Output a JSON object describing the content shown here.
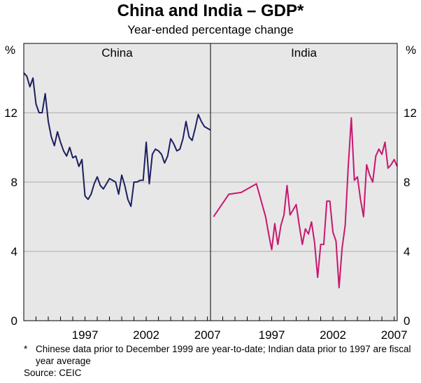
{
  "title": "China and India – GDP*",
  "subtitle": "Year-ended percentage change",
  "footnote": {
    "marker": "*",
    "text": "Chinese data prior to December 1999 are year-to-date; Indian data prior to 1997 are fiscal year average",
    "source": "Source: CEIC"
  },
  "colors": {
    "china": "#1b1f5e",
    "india": "#c8176f",
    "panel_bg": "#e7e7e7",
    "grid": "#a9a9a9"
  },
  "chart_data": [
    {
      "type": "line",
      "panel_title": "China",
      "unit_label": "%",
      "xlim": [
        1992.0,
        2007.25
      ],
      "ylim": [
        0,
        16
      ],
      "y_ticks": [
        0,
        4,
        8,
        12
      ],
      "x_ticks": [
        1997,
        2002,
        2007
      ],
      "x_tick_labels": [
        "1997",
        "2002",
        "2007"
      ],
      "series": [
        {
          "name": "China",
          "x": [
            1992.0,
            1992.25,
            1992.5,
            1992.75,
            1993.0,
            1993.25,
            1993.5,
            1993.75,
            1994.0,
            1994.25,
            1994.5,
            1994.75,
            1995.0,
            1995.25,
            1995.5,
            1995.75,
            1996.0,
            1996.25,
            1996.5,
            1996.75,
            1997.0,
            1997.25,
            1997.5,
            1997.75,
            1998.0,
            1998.25,
            1998.5,
            1998.75,
            1999.0,
            1999.25,
            1999.5,
            1999.75,
            2000.0,
            2000.25,
            2000.5,
            2000.75,
            2001.0,
            2001.25,
            2001.5,
            2001.75,
            2002.0,
            2002.25,
            2002.5,
            2002.75,
            2003.0,
            2003.25,
            2003.5,
            2003.75,
            2004.0,
            2004.25,
            2004.5,
            2004.75,
            2005.0,
            2005.25,
            2005.5,
            2005.75,
            2006.0,
            2006.25,
            2006.5,
            2006.75,
            2007.0,
            2007.25
          ],
          "values": [
            14.3,
            14.1,
            13.5,
            14.0,
            12.5,
            12.0,
            12.0,
            13.1,
            11.5,
            10.6,
            10.1,
            10.9,
            10.3,
            9.8,
            9.5,
            10.0,
            9.4,
            9.5,
            8.9,
            9.3,
            7.2,
            7.0,
            7.3,
            7.9,
            8.3,
            7.8,
            7.6,
            7.9,
            8.2,
            8.1,
            8.0,
            7.3,
            8.4,
            7.8,
            7.0,
            6.6,
            8.0,
            8.0,
            8.1,
            8.1,
            10.3,
            7.9,
            9.6,
            9.9,
            9.8,
            9.6,
            9.1,
            9.5,
            10.5,
            10.2,
            9.8,
            9.9,
            10.5,
            11.5,
            10.6,
            10.4,
            11.1,
            11.9,
            11.5,
            11.2,
            11.1,
            11.0
          ]
        }
      ]
    },
    {
      "type": "line",
      "panel_title": "India",
      "unit_label": "%",
      "xlim": [
        1992.0,
        2007.25
      ],
      "ylim": [
        0,
        16
      ],
      "y_ticks": [
        0,
        4,
        8,
        12
      ],
      "x_ticks": [
        1997,
        2002,
        2007
      ],
      "x_tick_labels": [
        "1997",
        "2002",
        "2007"
      ],
      "series": [
        {
          "name": "India",
          "x": [
            1992.25,
            1993.5,
            1994.5,
            1995.75,
            1996.5,
            1996.75,
            1997.0,
            1997.25,
            1997.5,
            1997.75,
            1998.0,
            1998.25,
            1998.5,
            1998.75,
            1999.0,
            1999.25,
            1999.5,
            1999.75,
            2000.0,
            2000.25,
            2000.5,
            2000.75,
            2001.0,
            2001.25,
            2001.5,
            2001.75,
            2002.0,
            2002.25,
            2002.5,
            2002.75,
            2003.0,
            2003.25,
            2003.5,
            2003.75,
            2004.0,
            2004.25,
            2004.5,
            2004.75,
            2005.0,
            2005.25,
            2005.5,
            2005.75,
            2006.0,
            2006.25,
            2006.5,
            2006.75,
            2007.0,
            2007.25
          ],
          "values": [
            6.0,
            7.3,
            7.4,
            7.9,
            6.0,
            5.0,
            4.1,
            5.6,
            4.4,
            5.5,
            6.1,
            7.8,
            6.1,
            6.4,
            6.7,
            5.5,
            4.4,
            5.3,
            5.0,
            5.7,
            4.5,
            2.5,
            4.4,
            4.4,
            6.9,
            6.9,
            5.1,
            4.6,
            1.9,
            4.2,
            5.5,
            8.9,
            11.7,
            8.1,
            8.3,
            7.0,
            6.0,
            9.0,
            8.4,
            8.0,
            9.5,
            9.9,
            9.6,
            10.3,
            8.8,
            9.0,
            9.3,
            8.9
          ]
        }
      ]
    }
  ]
}
